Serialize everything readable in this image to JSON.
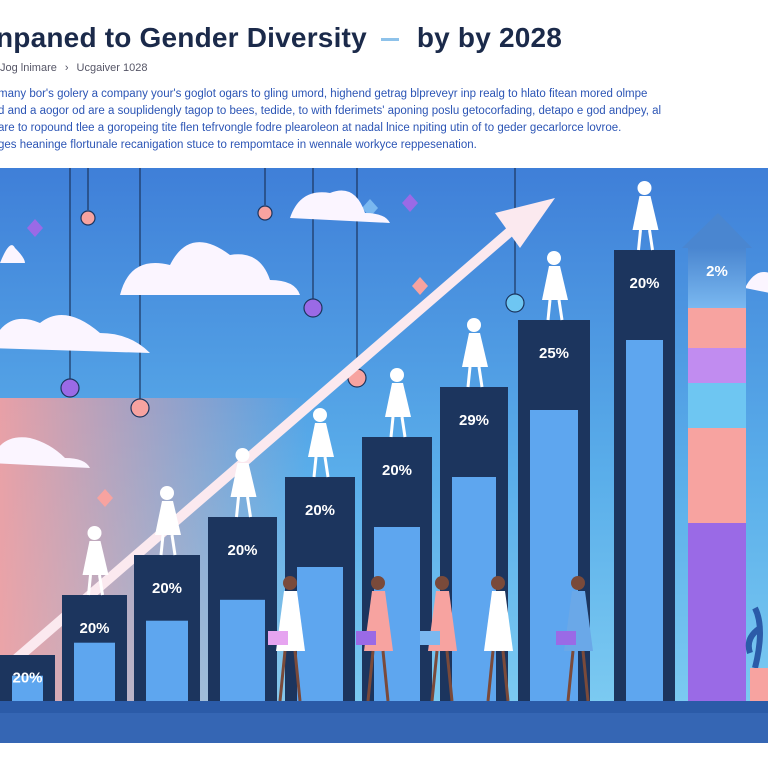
{
  "header": {
    "title_left": "npaned to Gender Diversity",
    "title_right": "by by 2028",
    "breadcrumb": [
      "Jog lnimare",
      "Ucgaiver 1028"
    ]
  },
  "paragraph": [
    "many bor's golery a company your's goglot ogars to gling umord, highend getrag blpreveyr inp realg to hlato fitean mored olmpe",
    "d and a aogor od are a souplidengly tagop to bees, tedide, to with fderimets' aponing poslu getocorfading, detapo e god andpey, al",
    "are to ropound tlee a goropeing tite flen tefrvongle fodre plearoleon at nadal lnice npiting utin of to geder gecarlorce lovroe.",
    "ges heaninge flortunale recanigation stuce to rempomtace in wennale workyce reppesenation."
  ],
  "illustration": {
    "bar_labels": [
      "20%",
      "20%",
      "20%",
      "20%",
      "20%",
      "20%",
      "29%",
      "25%",
      "20%"
    ],
    "arrow_column_label": "2%",
    "colors": {
      "sky_top": "#3f7fd8",
      "sky_bottom": "#f6a3a3",
      "bar_dark": "#1c355e",
      "bar_inner": "#5ea6ef",
      "ground": "#2b5ba8",
      "arrow": "#fbe9ef"
    }
  }
}
